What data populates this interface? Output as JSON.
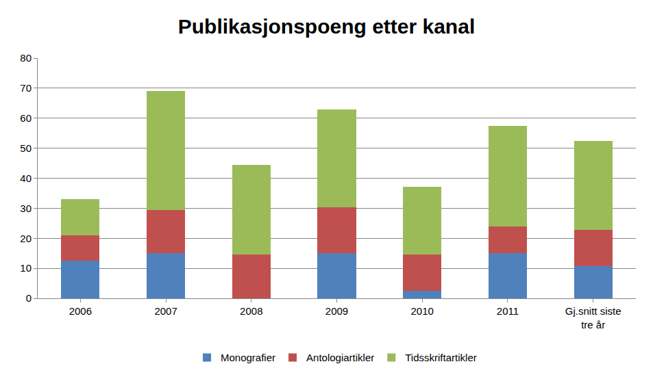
{
  "chart_data": {
    "type": "bar",
    "stacked": true,
    "title": "Publikasjonspoeng etter kanal",
    "categories": [
      "2006",
      "2007",
      "2008",
      "2009",
      "2010",
      "2011",
      "Gj.snitt siste tre år"
    ],
    "series": [
      {
        "name": "Monografier",
        "color": "#4f81bd",
        "values": [
          12.5,
          15,
          0,
          15,
          2.5,
          15,
          10.8
        ]
      },
      {
        "name": "Antologiartikler",
        "color": "#c0504d",
        "values": [
          8.5,
          14.5,
          14.5,
          15.3,
          12,
          9,
          12
        ]
      },
      {
        "name": "Tidsskriftartikler",
        "color": "#9bbb59",
        "values": [
          12,
          39.5,
          30,
          32.5,
          22.7,
          33.5,
          29.7
        ]
      }
    ],
    "ylim": [
      0,
      80
    ],
    "yticks": [
      0,
      10,
      20,
      30,
      40,
      50,
      60,
      70,
      80
    ],
    "grid": true,
    "legend": "bottom"
  }
}
